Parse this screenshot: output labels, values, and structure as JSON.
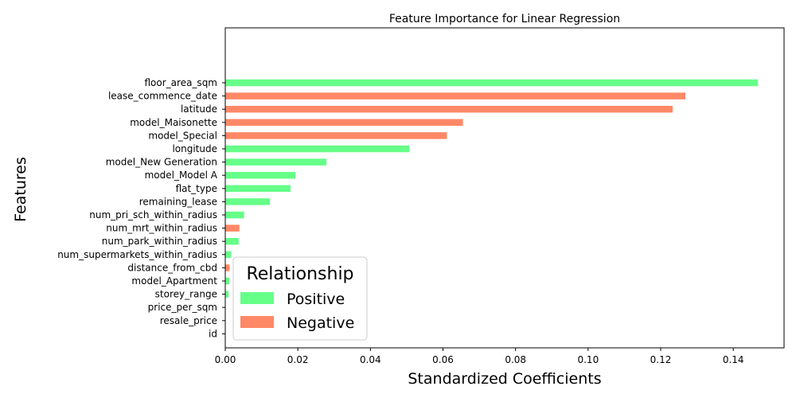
{
  "chart_data": {
    "type": "bar",
    "orientation": "horizontal",
    "title": "Feature Importance for Linear Regression",
    "xlabel": "Standardized Coefficients",
    "ylabel": "Features",
    "xlim": [
      0,
      0.154
    ],
    "x_ticks": [
      "0.00",
      "0.02",
      "0.04",
      "0.06",
      "0.08",
      "0.10",
      "0.12",
      "0.14"
    ],
    "x_tick_values": [
      0,
      0.02,
      0.04,
      0.06,
      0.08,
      0.1,
      0.12,
      0.14
    ],
    "grid": false,
    "colors": {
      "positive": "#66ff88",
      "negative": "#ff8866"
    },
    "legend": {
      "title": "Relationship",
      "placement": "lower-left",
      "entries": [
        {
          "label": "Positive",
          "color": "#66ff88"
        },
        {
          "label": "Negative",
          "color": "#ff8866"
        }
      ]
    },
    "bars": [
      {
        "feature": "floor_area_sqm",
        "value": 0.1468,
        "relationship": "positive"
      },
      {
        "feature": "lease_commence_date",
        "value": 0.1268,
        "relationship": "negative"
      },
      {
        "feature": "latitude",
        "value": 0.1233,
        "relationship": "negative"
      },
      {
        "feature": "model_Maisonette",
        "value": 0.0655,
        "relationship": "negative"
      },
      {
        "feature": "model_Special",
        "value": 0.0611,
        "relationship": "negative"
      },
      {
        "feature": "longitude",
        "value": 0.0507,
        "relationship": "positive"
      },
      {
        "feature": "model_New Generation",
        "value": 0.0279,
        "relationship": "positive"
      },
      {
        "feature": "model_Model A",
        "value": 0.0193,
        "relationship": "positive"
      },
      {
        "feature": "flat_type",
        "value": 0.018,
        "relationship": "positive"
      },
      {
        "feature": "remaining_lease",
        "value": 0.0123,
        "relationship": "positive"
      },
      {
        "feature": "num_pri_sch_within_radius",
        "value": 0.0052,
        "relationship": "positive"
      },
      {
        "feature": "num_mrt_within_radius",
        "value": 0.0039,
        "relationship": "negative"
      },
      {
        "feature": "num_park_within_radius",
        "value": 0.0037,
        "relationship": "positive"
      },
      {
        "feature": "num_supermarkets_within_radius",
        "value": 0.0016,
        "relationship": "positive"
      },
      {
        "feature": "distance_from_cbd",
        "value": 0.0012,
        "relationship": "negative"
      },
      {
        "feature": "model_Apartment",
        "value": 0.0011,
        "relationship": "positive"
      },
      {
        "feature": "storey_range",
        "value": 0.0009,
        "relationship": "positive"
      },
      {
        "feature": "price_per_sqm",
        "value": 0.0,
        "relationship": "positive"
      },
      {
        "feature": "resale_price",
        "value": 0.0,
        "relationship": "positive"
      },
      {
        "feature": "id",
        "value": 0.0,
        "relationship": "positive"
      }
    ]
  }
}
